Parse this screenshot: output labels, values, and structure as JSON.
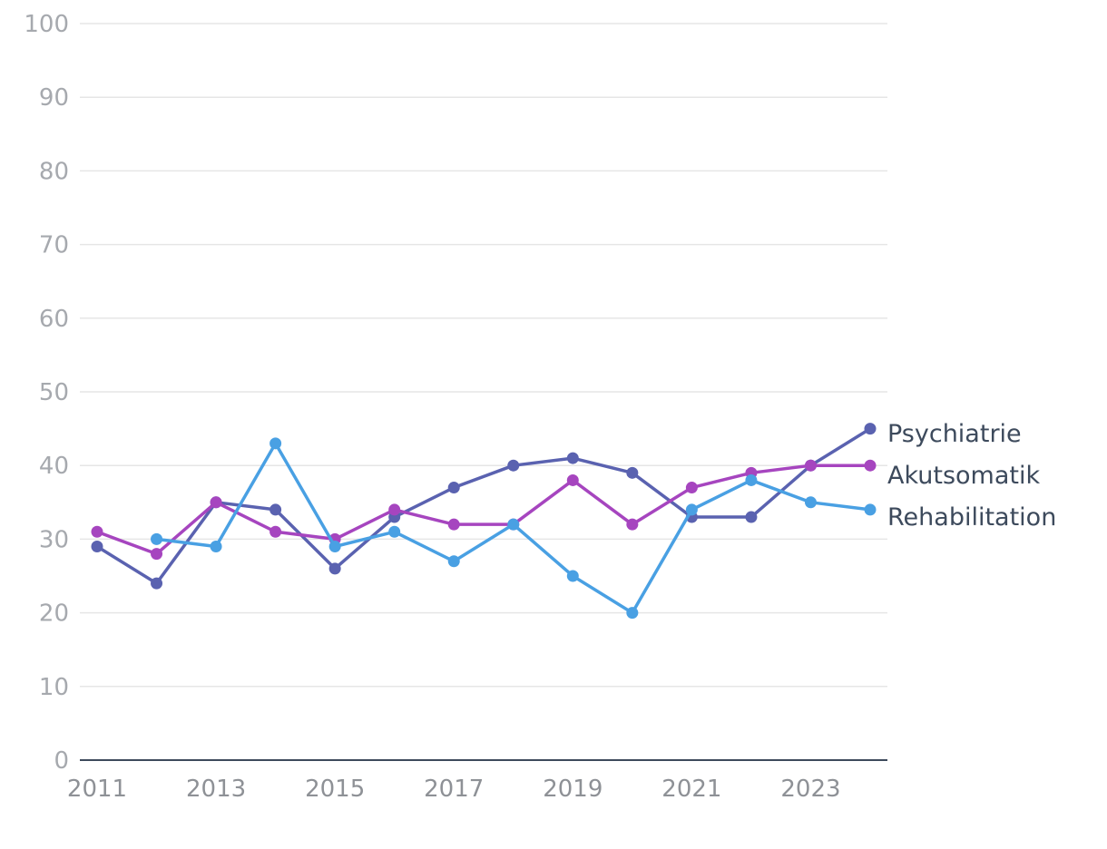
{
  "chart_data": {
    "type": "line",
    "title": "",
    "xlabel": "",
    "ylabel": "",
    "ylim": [
      0,
      100
    ],
    "yticks": [
      0,
      10,
      20,
      30,
      40,
      50,
      60,
      70,
      80,
      90,
      100
    ],
    "xticks": [
      2011,
      2013,
      2015,
      2017,
      2019,
      2021,
      2023
    ],
    "grid": true,
    "legend": "right, at series ends",
    "x": [
      2011,
      2012,
      2013,
      2014,
      2015,
      2016,
      2017,
      2018,
      2019,
      2020,
      2021,
      2022,
      2023,
      2024
    ],
    "series": [
      {
        "name": "Psychiatrie",
        "color": "#5a62b0",
        "values": [
          29,
          24,
          35,
          34,
          26,
          33,
          37,
          40,
          41,
          39,
          33,
          33,
          40,
          45
        ]
      },
      {
        "name": "Akutsomatik",
        "color": "#a645bf",
        "values": [
          31,
          28,
          35,
          31,
          30,
          34,
          32,
          32,
          38,
          32,
          37,
          39,
          40,
          40
        ]
      },
      {
        "name": "Rehabilitation",
        "color": "#49a0e3",
        "values": [
          null,
          30,
          29,
          43,
          29,
          31,
          27,
          32,
          25,
          20,
          34,
          38,
          35,
          34
        ]
      }
    ]
  }
}
